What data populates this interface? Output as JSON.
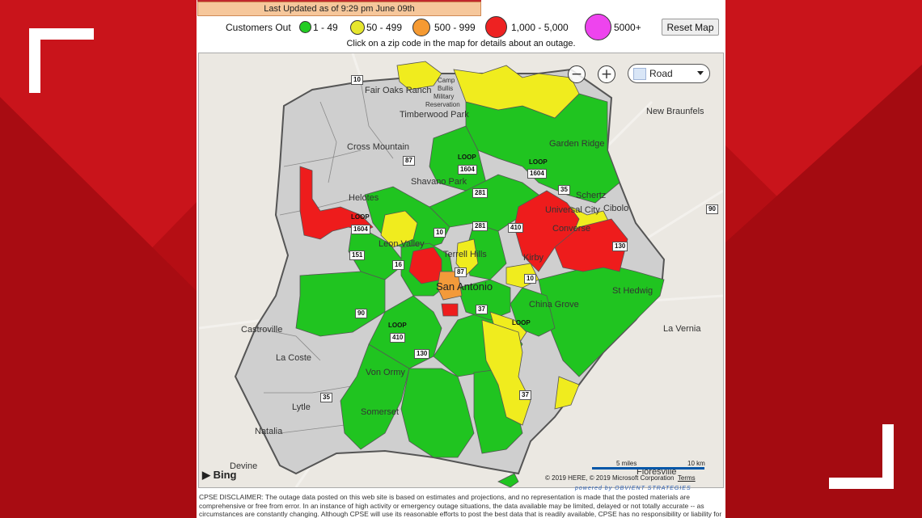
{
  "header": {
    "last_updated": "Last Updated as of 9:29 pm June 09th",
    "instruction": "Click on a zip code in the map for details about an outage.",
    "reset_label": "Reset Map"
  },
  "legend": {
    "title": "Customers Out",
    "items": [
      {
        "label": "1 - 49",
        "color": "#22cc22"
      },
      {
        "label": "50 - 499",
        "color": "#e6e62e"
      },
      {
        "label": "500 - 999",
        "color": "#f59a32"
      },
      {
        "label": "1,000 - 5,000",
        "color": "#ee2222"
      },
      {
        "label": "5000+",
        "color": "#ee44ee"
      }
    ]
  },
  "map": {
    "zoom_out": "−",
    "zoom_in": "+",
    "map_type": "Road",
    "places": {
      "fair_oaks": "Fair Oaks Ranch",
      "camp_bullis": "Camp",
      "camp_bullis2": "Bullis",
      "camp_bullis3": "Military",
      "camp_bullis4": "Reservation",
      "timberwood": "Timberwood Park",
      "new_braunfels": "New Braunfels",
      "garden_ridge": "Garden Ridge",
      "cross_mountain": "Cross Mountain",
      "shavano": "Shavano Park",
      "schertz": "Schertz",
      "cibolo": "Cibolo",
      "helotes": "Helotes",
      "universal_city": "Universal City",
      "converse": "Converse",
      "leon_valley": "Leon Valley",
      "terrell_hills": "Terrell Hills",
      "kirby": "Kirby",
      "san_antonio": "San Antonio",
      "st_hedwig": "St Hedwig",
      "china_grove": "China Grove",
      "castroville": "Castroville",
      "la_vernia": "La Vernia",
      "la_coste": "La Coste",
      "von_ormy": "Von Ormy",
      "lytle": "Lytle",
      "somerset": "Somerset",
      "natalia": "Natalia",
      "devine": "Devine",
      "floresville": "Floresville"
    },
    "shields": {
      "i10a": "10",
      "loop_a": "LOOP",
      "loop_a_n": "1604",
      "i87": "87",
      "loop_b": "LOOP",
      "loop_b_n": "1604",
      "i35a": "35",
      "us281": "281",
      "us281b": "281",
      "loop_c": "LOOP",
      "loop_c_n": "1604",
      "i10b": "10",
      "i410a": "410",
      "i90": "90",
      "s151": "151",
      "s16": "16",
      "s87": "87",
      "i10c": "10",
      "i130": "130",
      "i90b": "90",
      "i37": "37",
      "loop_d": "LOOP",
      "i410b": "410",
      "s130": "130",
      "i37b": "37",
      "i35b": "35",
      "i410c": "410",
      "loop_e": "LOOP"
    },
    "bing": "Bing",
    "copyright": "© 2019 HERE, © 2019 Microsoft Corporation",
    "terms": "Terms",
    "scale_miles": "5 miles",
    "scale_km": "10 km"
  },
  "footer": {
    "powered": "powered by OBVIENT STRATEGIES",
    "disclaimer": "CPSE DISCLAIMER:  The outage data posted on this web site is based on estimates and projections, and no representation is made that the posted materials are comprehensive or free from error.  In an instance of high activity or emergency outage situations, the data available may be limited, delayed or not totally accurate -- as circumstances are constantly changing.  Although CPSE will use its reasonable efforts to post the best data that is readily available, CPSE has no responsibility or liability for"
  }
}
